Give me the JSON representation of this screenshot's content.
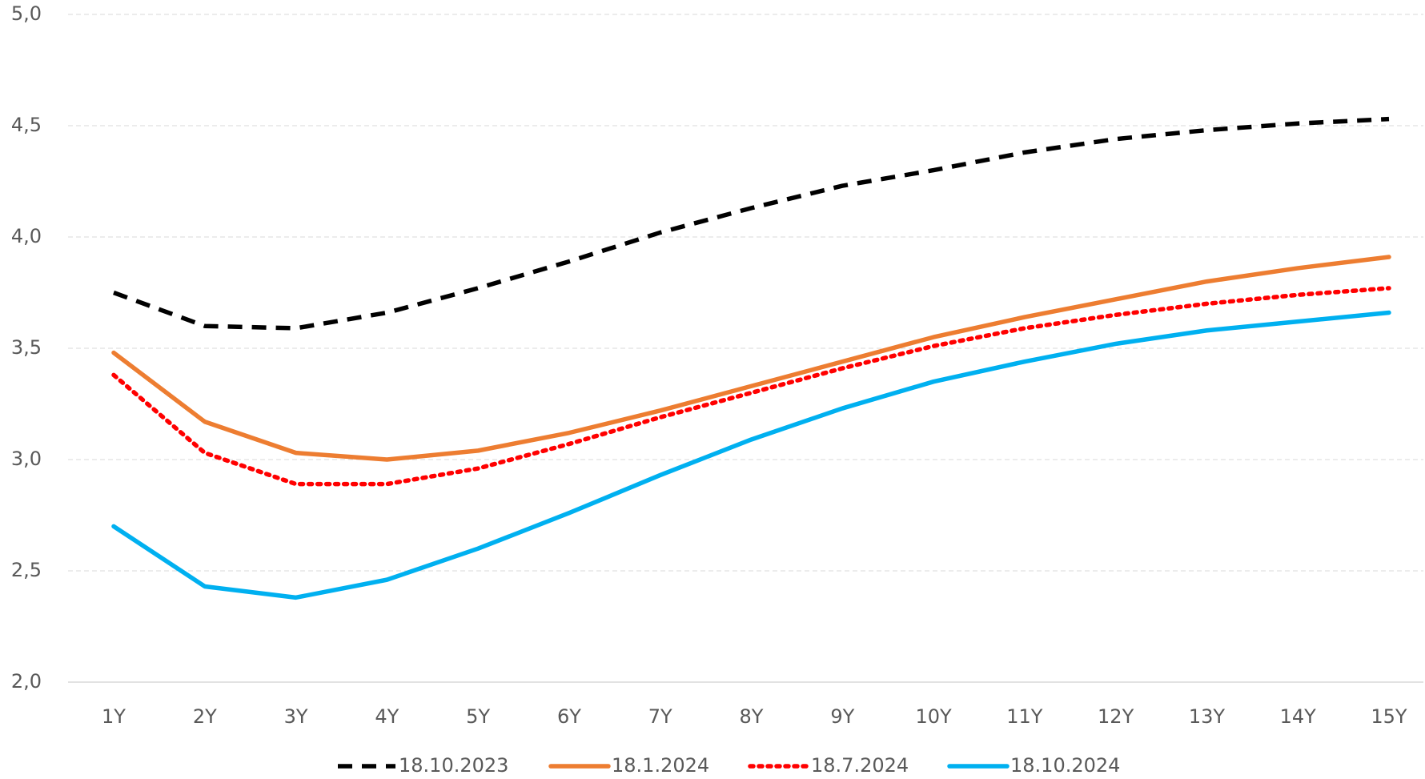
{
  "chart_data": {
    "type": "line",
    "categories": [
      "1Y",
      "2Y",
      "3Y",
      "4Y",
      "5Y",
      "6Y",
      "7Y",
      "8Y",
      "9Y",
      "10Y",
      "11Y",
      "12Y",
      "13Y",
      "14Y",
      "15Y"
    ],
    "ylim": [
      2.0,
      5.0
    ],
    "yticks": [
      {
        "value": 2.0,
        "label": "2,0"
      },
      {
        "value": 2.5,
        "label": "2,5"
      },
      {
        "value": 3.0,
        "label": "3,0"
      },
      {
        "value": 3.5,
        "label": "3,5"
      },
      {
        "value": 4.0,
        "label": "4,0"
      },
      {
        "value": 4.5,
        "label": "4,5"
      },
      {
        "value": 5.0,
        "label": "5,0"
      }
    ],
    "grid": true,
    "legend": "bottom",
    "series": [
      {
        "name": "18.10.2023",
        "color": "#000000",
        "dash": "dashed",
        "values": [
          3.75,
          3.6,
          3.59,
          3.66,
          3.77,
          3.89,
          4.02,
          4.13,
          4.23,
          4.3,
          4.38,
          4.44,
          4.48,
          4.51,
          4.53
        ]
      },
      {
        "name": "18.1.2024",
        "color": "#ed7d31",
        "dash": "solid",
        "values": [
          3.48,
          3.17,
          3.03,
          3.0,
          3.04,
          3.12,
          3.22,
          3.33,
          3.44,
          3.55,
          3.64,
          3.72,
          3.8,
          3.86,
          3.91
        ]
      },
      {
        "name": "18.7.2024",
        "color": "#ff0000",
        "dash": "dotted",
        "values": [
          3.38,
          3.03,
          2.89,
          2.89,
          2.96,
          3.07,
          3.19,
          3.3,
          3.41,
          3.51,
          3.59,
          3.65,
          3.7,
          3.74,
          3.77
        ]
      },
      {
        "name": "18.10.2024",
        "color": "#00b0f0",
        "dash": "solid",
        "values": [
          2.7,
          2.43,
          2.38,
          2.46,
          2.6,
          2.76,
          2.93,
          3.09,
          3.23,
          3.35,
          3.44,
          3.52,
          3.58,
          3.62,
          3.66
        ]
      }
    ]
  }
}
